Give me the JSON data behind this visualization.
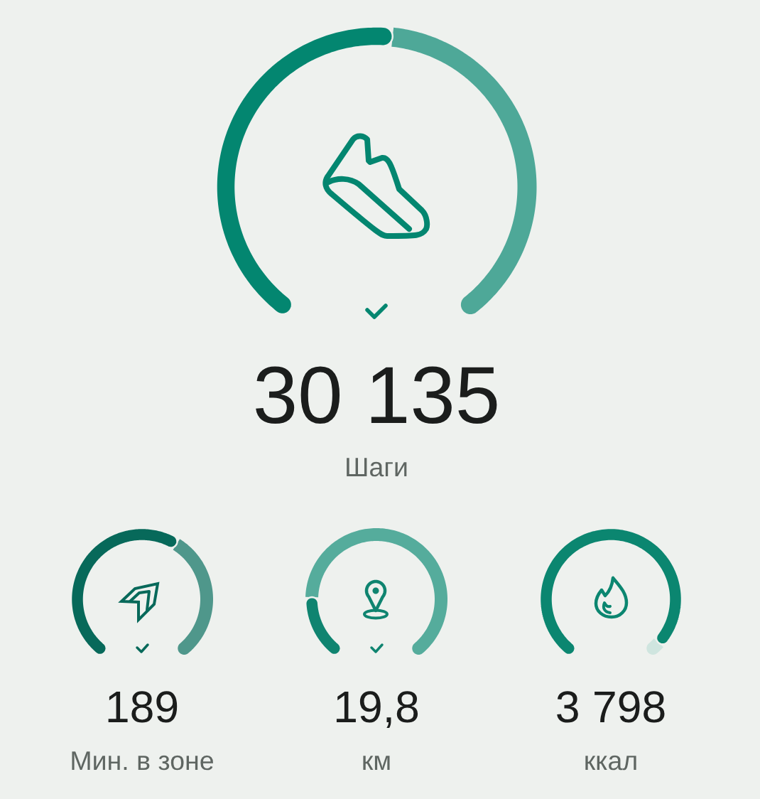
{
  "chart_data": [
    {
      "type": "donut",
      "categories": [
        null,
        null
      ],
      "values": [
        52,
        48
      ],
      "colors": [
        "#038670",
        "#4ea898"
      ],
      "annotations": [
        "30 135"
      ],
      "title": "Шаги"
    },
    {
      "type": "donut",
      "categories": [
        null,
        null
      ],
      "values": [
        61,
        39
      ],
      "colors": [
        "#07695a",
        "#4f978b"
      ],
      "annotations": [
        "189"
      ],
      "title": "Мин. в зоне"
    },
    {
      "type": "donut",
      "categories": [
        null,
        null
      ],
      "values": [
        19,
        81
      ],
      "colors": [
        "#0f8470",
        "#55ac9c"
      ],
      "annotations": [
        "19,8"
      ],
      "title": "км"
    },
    {
      "type": "donut",
      "categories": [
        null,
        null
      ],
      "values": [
        96,
        4
      ],
      "colors": [
        "#0b8670",
        "#cfe5df"
      ],
      "annotations": [
        "3 798"
      ],
      "title": "ккал"
    }
  ]
}
